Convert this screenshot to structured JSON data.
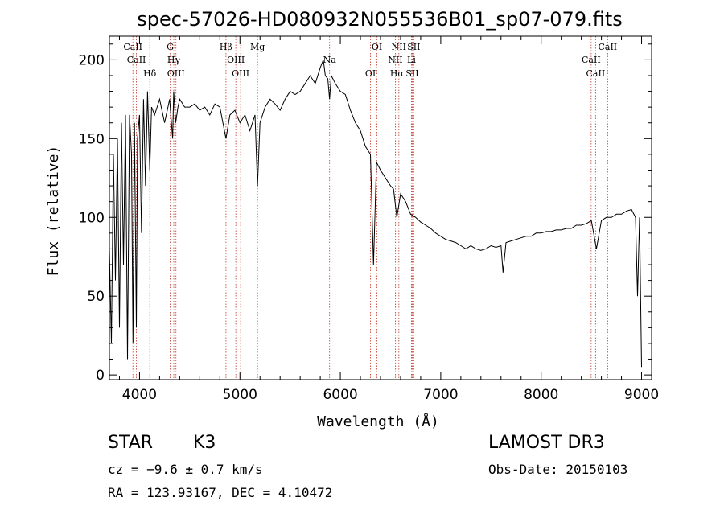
{
  "chart_data": {
    "type": "line",
    "title": "spec-57026-HD080932N055536B01_sp07-079.fits",
    "xlabel": "Wavelength (Å)",
    "ylabel": "Flux (relative)",
    "xlim": [
      3700,
      9100
    ],
    "ylim": [
      -3,
      215
    ],
    "xticks": [
      4000,
      5000,
      6000,
      7000,
      8000,
      9000
    ],
    "yticks": [
      0,
      50,
      100,
      150,
      200
    ],
    "grid": false,
    "series": [
      {
        "x": [
          3700,
          3720,
          3740,
          3760,
          3780,
          3800,
          3820,
          3840,
          3860,
          3880,
          3900,
          3920,
          3935,
          3950,
          3968,
          3980,
          4000,
          4020,
          4040,
          4060,
          4080,
          4102,
          4120,
          4150,
          4200,
          4250,
          4300,
          4330,
          4340,
          4360,
          4383,
          4400,
          4450,
          4500,
          4550,
          4600,
          4650,
          4700,
          4750,
          4800,
          4861,
          4900,
          4950,
          5000,
          5050,
          5100,
          5150,
          5175,
          5200,
          5250,
          5300,
          5350,
          5400,
          5450,
          5500,
          5550,
          5600,
          5650,
          5700,
          5750,
          5800,
          5830,
          5850,
          5875,
          5893,
          5910,
          5950,
          6000,
          6050,
          6100,
          6150,
          6200,
          6250,
          6300,
          6330,
          6360,
          6400,
          6450,
          6500,
          6530,
          6563,
          6600,
          6650,
          6700,
          6750,
          6800,
          6850,
          6900,
          6950,
          7000,
          7050,
          7100,
          7150,
          7200,
          7250,
          7300,
          7350,
          7400,
          7450,
          7500,
          7550,
          7600,
          7620,
          7650,
          7700,
          7750,
          7800,
          7850,
          7900,
          7950,
          8000,
          8050,
          8100,
          8150,
          8200,
          8250,
          8300,
          8350,
          8400,
          8450,
          8500,
          8550,
          8600,
          8650,
          8700,
          8750,
          8800,
          8850,
          8900,
          8940,
          8960,
          8980,
          9000
        ],
        "y": [
          80,
          20,
          140,
          60,
          150,
          30,
          160,
          70,
          165,
          10,
          165,
          140,
          20,
          160,
          30,
          150,
          165,
          90,
          175,
          120,
          180,
          130,
          170,
          165,
          175,
          160,
          175,
          150,
          180,
          160,
          170,
          175,
          170,
          170,
          172,
          168,
          170,
          165,
          172,
          170,
          150,
          165,
          168,
          160,
          165,
          155,
          165,
          120,
          160,
          170,
          175,
          172,
          168,
          175,
          180,
          178,
          180,
          185,
          190,
          185,
          195,
          200,
          190,
          188,
          175,
          190,
          185,
          180,
          178,
          168,
          160,
          155,
          145,
          140,
          70,
          135,
          130,
          125,
          120,
          118,
          100,
          115,
          110,
          102,
          100,
          97,
          95,
          93,
          90,
          88,
          86,
          85,
          84,
          82,
          80,
          82,
          80,
          79,
          80,
          82,
          81,
          82,
          65,
          84,
          85,
          86,
          87,
          88,
          88,
          90,
          90,
          91,
          91,
          92,
          92,
          93,
          93,
          95,
          95,
          96,
          98,
          80,
          98,
          100,
          100,
          102,
          102,
          104,
          105,
          100,
          50,
          100,
          5
        ]
      }
    ],
    "lines": [
      {
        "label": "CaII",
        "x": 3934
      },
      {
        "label": "CaII",
        "x": 3969
      },
      {
        "label": "Hδ",
        "x": 4102
      },
      {
        "label": "G",
        "x": 4305
      },
      {
        "label": "Hγ",
        "x": 4341
      },
      {
        "label": "OIII",
        "x": 4363
      },
      {
        "label": "Hβ",
        "x": 4861
      },
      {
        "label": "OIII",
        "x": 4959
      },
      {
        "label": "OIII",
        "x": 5007
      },
      {
        "label": "Mg",
        "x": 5175
      },
      {
        "label": "Na",
        "x": 5893
      },
      {
        "label": "OI",
        "x": 6300
      },
      {
        "label": "OI",
        "x": 6364
      },
      {
        "label": "NII",
        "x": 6548
      },
      {
        "label": "Hα",
        "x": 6563
      },
      {
        "label": "NII",
        "x": 6583
      },
      {
        "label": "Li",
        "x": 6708
      },
      {
        "label": "SII",
        "x": 6716
      },
      {
        "label": "SII",
        "x": 6731
      },
      {
        "label": "CaII",
        "x": 8498
      },
      {
        "label": "CaII",
        "x": 8542
      },
      {
        "label": "CaII",
        "x": 8662
      }
    ]
  },
  "info": {
    "object_class": "STAR",
    "subclass": "K3",
    "survey": "LAMOST DR3",
    "cz": "cz = −9.6 ± 0.7 km/s",
    "obs_date": "Obs-Date: 20150103",
    "coords": "RA = 123.93167, DEC =    4.10472"
  }
}
